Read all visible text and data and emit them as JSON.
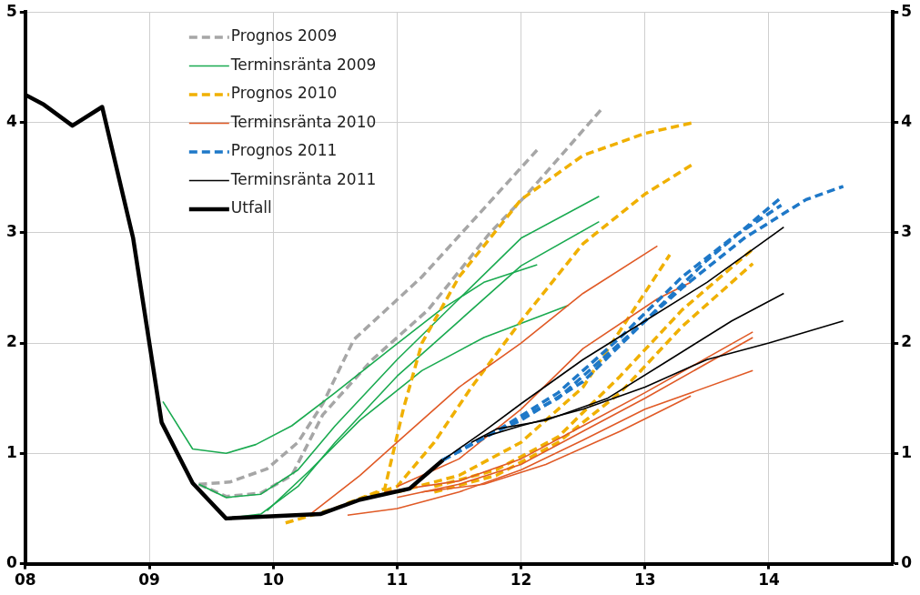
{
  "chart_data": {
    "type": "line",
    "xlim": [
      2008,
      2015
    ],
    "xticks": [
      {
        "value": 2008,
        "label": "08"
      },
      {
        "value": 2009,
        "label": "09"
      },
      {
        "value": 2010,
        "label": "10"
      },
      {
        "value": 2011,
        "label": "11"
      },
      {
        "value": 2012,
        "label": "12"
      },
      {
        "value": 2013,
        "label": "13"
      },
      {
        "value": 2014,
        "label": "14"
      }
    ],
    "ylim": [
      0,
      5
    ],
    "yticks": [
      0,
      1,
      2,
      3,
      4,
      5
    ],
    "y2lim": [
      0,
      5
    ],
    "y2ticks": [
      0,
      1,
      2,
      3,
      4,
      5
    ],
    "grid": true,
    "legend": "top left",
    "marker": "none",
    "series": [
      {
        "name": "Prognos 2009",
        "color": "#a6a6a6",
        "line_style": "dashed",
        "x": [
          2009.4,
          2009.65,
          2009.95,
          2010.2,
          2010.4,
          2010.65,
          2011.2,
          2012.13
        ],
        "values": [
          0.72,
          0.74,
          0.86,
          1.1,
          1.45,
          2.03,
          2.6,
          3.75
        ]
      },
      {
        "color": "#a6a6a6",
        "line_style": "dashed",
        "x": [
          2009.4,
          2009.62,
          2009.9,
          2010.15,
          2010.4,
          2010.8,
          2011.25,
          2011.75,
          2012.05,
          2012.65
        ],
        "values": [
          0.72,
          0.61,
          0.64,
          0.8,
          1.35,
          1.85,
          2.3,
          3.0,
          3.35,
          4.12
        ]
      },
      {
        "name": "Terminsränta 2009",
        "color": "#1aaa50",
        "line_style": "solid",
        "x": [
          2009.11,
          2009.35,
          2009.62,
          2009.86,
          2010.15,
          2010.5,
          2010.95,
          2011.35,
          2011.7,
          2012.13
        ],
        "values": [
          1.47,
          1.04,
          1.0,
          1.08,
          1.25,
          1.55,
          1.95,
          2.3,
          2.55,
          2.71
        ]
      },
      {
        "color": "#1aaa50",
        "line_style": "solid",
        "x": [
          2009.4,
          2009.62,
          2009.9,
          2010.2,
          2010.5,
          2011.0,
          2011.5,
          2012.0,
          2012.63
        ],
        "values": [
          0.72,
          0.6,
          0.63,
          0.85,
          1.25,
          1.85,
          2.4,
          2.95,
          3.33
        ]
      },
      {
        "color": "#1aaa50",
        "line_style": "solid",
        "x": [
          2009.62,
          2009.9,
          2010.2,
          2010.5,
          2011.0,
          2011.5,
          2012.0,
          2012.63
        ],
        "values": [
          0.41,
          0.45,
          0.7,
          1.1,
          1.7,
          2.2,
          2.7,
          3.1
        ]
      },
      {
        "color": "#1aaa50",
        "line_style": "solid",
        "x": [
          2009.95,
          2010.3,
          2010.7,
          2011.2,
          2011.7,
          2012.38
        ],
        "values": [
          0.48,
          0.85,
          1.3,
          1.75,
          2.05,
          2.34
        ]
      },
      {
        "name": "Prognos 2010",
        "color": "#f0b000",
        "line_style": "dashed",
        "x": [
          2010.1,
          2010.5,
          2010.9,
          2011.05,
          2011.2,
          2011.5,
          2012.0,
          2012.5,
          2013.0,
          2013.4
        ],
        "values": [
          0.37,
          0.5,
          0.68,
          1.4,
          2.0,
          2.6,
          3.3,
          3.7,
          3.9,
          4.0
        ]
      },
      {
        "color": "#f0b000",
        "line_style": "dashed",
        "x": [
          2010.6,
          2011.0,
          2011.3,
          2011.6,
          2012.0,
          2012.5,
          2013.0,
          2013.4
        ],
        "values": [
          0.55,
          0.7,
          1.1,
          1.6,
          2.2,
          2.9,
          3.35,
          3.63
        ]
      },
      {
        "color": "#f0b000",
        "line_style": "dashed",
        "x": [
          2011.0,
          2011.5,
          2012.0,
          2012.5,
          2012.85,
          2013.2
        ],
        "values": [
          0.65,
          0.8,
          1.1,
          1.6,
          2.2,
          2.8
        ]
      },
      {
        "color": "#f0b000",
        "line_style": "dashed",
        "x": [
          2011.3,
          2011.8,
          2012.3,
          2012.8,
          2013.3,
          2013.87
        ],
        "values": [
          0.7,
          0.85,
          1.15,
          1.7,
          2.3,
          2.85
        ]
      },
      {
        "color": "#f0b000",
        "line_style": "dashed",
        "x": [
          2011.3,
          2011.8,
          2012.3,
          2012.8,
          2013.3,
          2013.87
        ],
        "values": [
          0.65,
          0.8,
          1.1,
          1.55,
          2.15,
          2.72
        ]
      },
      {
        "name": "Terminsränta 2010",
        "color": "#e05a26",
        "line_style": "solid",
        "x": [
          2010.3,
          2010.7,
          2011.0,
          2011.5,
          2012.0,
          2012.5,
          2013.1
        ],
        "values": [
          0.45,
          0.8,
          1.1,
          1.6,
          2.0,
          2.45,
          2.88
        ]
      },
      {
        "color": "#e05a26",
        "line_style": "solid",
        "x": [
          2011.0,
          2011.5,
          2012.0,
          2012.5,
          2013.1,
          2013.37
        ],
        "values": [
          0.7,
          0.95,
          1.4,
          1.95,
          2.4,
          2.55
        ]
      },
      {
        "color": "#e05a26",
        "line_style": "solid",
        "x": [
          2010.9,
          2011.5,
          2012.0,
          2012.5,
          2013.0,
          2013.87
        ],
        "values": [
          0.65,
          0.75,
          0.95,
          1.25,
          1.55,
          2.1
        ]
      },
      {
        "color": "#e05a26",
        "line_style": "solid",
        "x": [
          2011.0,
          2011.5,
          2012.0,
          2012.5,
          2013.0,
          2013.87
        ],
        "values": [
          0.6,
          0.72,
          0.9,
          1.2,
          1.5,
          2.05
        ]
      },
      {
        "color": "#e05a26",
        "line_style": "solid",
        "x": [
          2010.6,
          2011.0,
          2011.5,
          2012.0,
          2012.5,
          2013.0,
          2013.87
        ],
        "values": [
          0.44,
          0.5,
          0.65,
          0.85,
          1.12,
          1.4,
          1.75
        ]
      },
      {
        "color": "#e05a26",
        "line_style": "solid",
        "x": [
          2011.2,
          2011.7,
          2012.2,
          2012.8,
          2013.37
        ],
        "values": [
          0.65,
          0.72,
          0.9,
          1.2,
          1.52
        ]
      },
      {
        "name": "Prognos 2011",
        "color": "#1e78c8",
        "line_style": "dashed",
        "x": [
          2011.37,
          2011.7,
          2012.0,
          2012.5,
          2013.0,
          2013.5,
          2014.1
        ],
        "values": [
          0.94,
          1.15,
          1.3,
          1.65,
          2.2,
          2.75,
          3.32
        ]
      },
      {
        "color": "#1e78c8",
        "line_style": "dashed",
        "x": [
          2011.37,
          2011.8,
          2012.3,
          2012.8,
          2013.3,
          2013.7,
          2014.1
        ],
        "values": [
          0.94,
          1.2,
          1.55,
          2.05,
          2.6,
          2.95,
          3.25
        ]
      },
      {
        "color": "#1e78c8",
        "line_style": "dashed",
        "x": [
          2011.37,
          2011.8,
          2012.3,
          2012.8,
          2013.3,
          2013.8,
          2014.3,
          2014.6
        ],
        "values": [
          0.94,
          1.2,
          1.5,
          2.0,
          2.5,
          2.95,
          3.3,
          3.42
        ]
      },
      {
        "name": "Terminsränta 2011",
        "color": "#000000",
        "line_style": "solid",
        "x": [
          2011.37,
          2011.7,
          2012.0,
          2012.5,
          2013.0,
          2013.5,
          2014.12
        ],
        "values": [
          0.94,
          1.2,
          1.45,
          1.85,
          2.2,
          2.55,
          3.05
        ]
      },
      {
        "color": "#000000",
        "line_style": "solid",
        "x": [
          2011.6,
          2011.8,
          2012.2,
          2012.7,
          2013.2,
          2013.7,
          2014.12
        ],
        "values": [
          1.1,
          1.22,
          1.3,
          1.5,
          1.85,
          2.2,
          2.45
        ]
      },
      {
        "color": "#000000",
        "line_style": "solid",
        "x": [
          2011.7,
          2012.0,
          2012.5,
          2013.0,
          2013.5,
          2014.0,
          2014.6
        ],
        "values": [
          1.15,
          1.25,
          1.4,
          1.6,
          1.85,
          2.0,
          2.2
        ]
      },
      {
        "name": "Utfall",
        "color": "#000000",
        "line_style": "solid",
        "x": [
          2008,
          2008.15,
          2008.38,
          2008.62,
          2008.87,
          2009.1,
          2009.35,
          2009.62,
          2010.38,
          2010.7,
          2011.1,
          2011.37
        ],
        "values": [
          4.25,
          4.16,
          3.97,
          4.14,
          2.95,
          1.28,
          0.73,
          0.41,
          0.45,
          0.58,
          0.68,
          0.94
        ]
      }
    ]
  }
}
